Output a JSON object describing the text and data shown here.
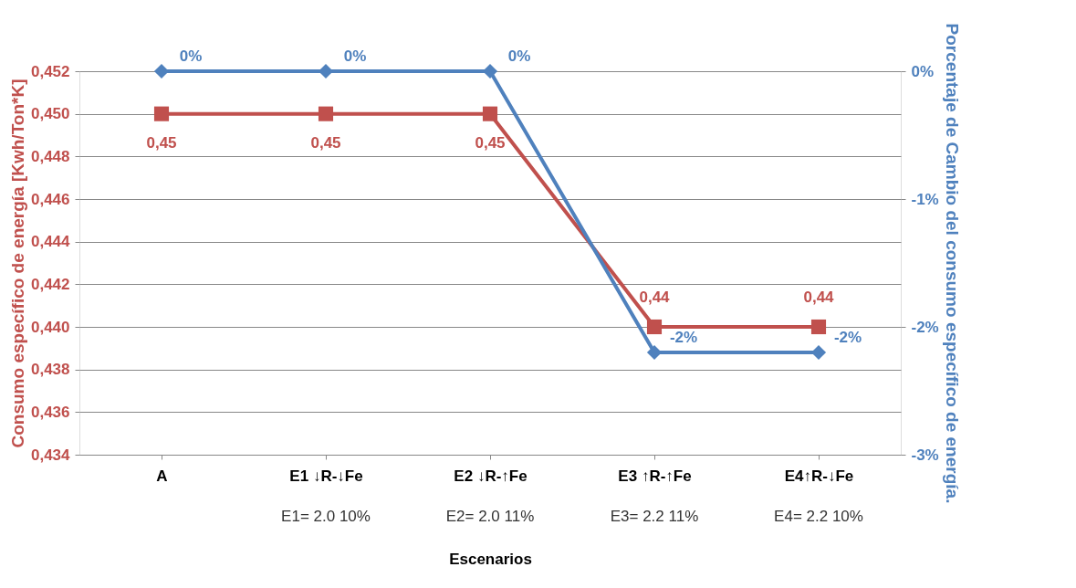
{
  "chart_data": {
    "type": "line",
    "xlabel": "Escenarios",
    "ylabel": "Consumo específico de energía [Kwh/Ton*K]",
    "y2label": "Porcentaje de Cambio del consumo específico de energía.",
    "categories": [
      "A",
      "E1 ↓R-↓Fe",
      "E2 ↓R-↑Fe",
      "E3 ↑R-↑Fe",
      "E4↑R-↓Fe"
    ],
    "series": [
      {
        "color": "#c0504d",
        "values": [
          0.45,
          0.45,
          0.45,
          0.44,
          0.44
        ],
        "value_labels": [
          "0,45",
          "0,45",
          "0,45",
          "0,44",
          "0,44"
        ],
        "marker": "square"
      },
      {
        "color": "#4f81bd",
        "axis": "y2",
        "values": [
          0,
          0,
          0,
          -2.2,
          -2.2
        ],
        "value_labels": [
          "0%",
          "0%",
          "0%",
          "-2%",
          "-2%"
        ],
        "marker": "diamond"
      }
    ],
    "ylim": [
      0.434,
      0.452
    ],
    "yticks": [
      {
        "value": 0.434,
        "label": "0,434"
      },
      {
        "value": 0.436,
        "label": "0,436"
      },
      {
        "value": 0.438,
        "label": "0,438"
      },
      {
        "value": 0.44,
        "label": "0,440"
      },
      {
        "value": 0.442,
        "label": "0,442"
      },
      {
        "value": 0.444,
        "label": "0,444"
      },
      {
        "value": 0.446,
        "label": "0,446"
      },
      {
        "value": 0.448,
        "label": "0,448"
      },
      {
        "value": 0.45,
        "label": "0,450"
      },
      {
        "value": 0.452,
        "label": "0,452"
      }
    ],
    "y2lim": [
      -3,
      0
    ],
    "y2ticks": [
      {
        "value": -3,
        "label": "-3%"
      },
      {
        "value": -2,
        "label": "-2%"
      },
      {
        "value": -1,
        "label": "-1%"
      },
      {
        "value": 0,
        "label": "0%"
      }
    ],
    "annotations": [
      "E1= 2.0  10%",
      "E2= 2.0  11%",
      "E3= 2.2  11%",
      "E4= 2.2  10%"
    ],
    "grid": "y"
  }
}
